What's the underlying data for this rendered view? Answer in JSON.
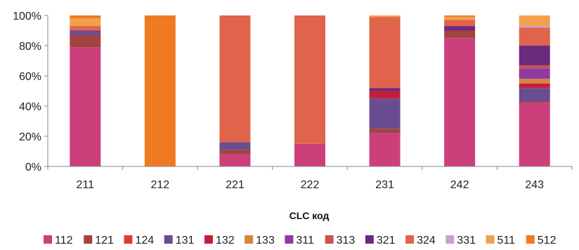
{
  "chart_data": {
    "type": "bar",
    "stacked": true,
    "percent": true,
    "title": "",
    "xlabel": "CLC код",
    "ylabel": "",
    "ylim": [
      0,
      100
    ],
    "yticks": [
      "0%",
      "20%",
      "40%",
      "60%",
      "80%",
      "100%"
    ],
    "grid": false,
    "legend_position": "bottom",
    "categories": [
      "211",
      "212",
      "221",
      "222",
      "231",
      "242",
      "243"
    ],
    "series": [
      {
        "name": "112",
        "color": "#cc3f7b",
        "values": [
          79,
          0,
          8,
          15,
          22,
          85,
          42
        ]
      },
      {
        "name": "121",
        "color": "#a3433f",
        "values": [
          8,
          0,
          3,
          0,
          3,
          5,
          1
        ]
      },
      {
        "name": "124",
        "color": "#e03a36",
        "values": [
          0,
          0,
          0,
          0,
          0,
          0,
          0
        ]
      },
      {
        "name": "131",
        "color": "#6a4c92",
        "values": [
          3,
          0,
          5,
          0,
          20,
          0,
          9
        ]
      },
      {
        "name": "132",
        "color": "#c41e3a",
        "values": [
          0,
          0,
          0,
          0,
          5,
          0,
          3
        ]
      },
      {
        "name": "133",
        "color": "#d6843e",
        "values": [
          0,
          0,
          0,
          0,
          0,
          0,
          3
        ]
      },
      {
        "name": "311",
        "color": "#8e3aa0",
        "values": [
          0,
          0,
          0,
          0,
          0,
          0,
          7
        ]
      },
      {
        "name": "313",
        "color": "#c9524f",
        "values": [
          0,
          0,
          0,
          0,
          0,
          0,
          2
        ]
      },
      {
        "name": "321",
        "color": "#6b2a7d",
        "values": [
          0,
          0,
          0,
          0,
          2,
          3,
          13
        ]
      },
      {
        "name": "324",
        "color": "#e0634b",
        "values": [
          3,
          0,
          84,
          85,
          47,
          4,
          12
        ]
      },
      {
        "name": "331",
        "color": "#c7a2cf",
        "values": [
          0,
          0,
          0,
          0,
          0,
          0,
          1
        ]
      },
      {
        "name": "511",
        "color": "#f2a04e",
        "values": [
          5,
          0,
          0,
          0,
          1,
          2,
          7
        ]
      },
      {
        "name": "512",
        "color": "#ef7a22",
        "values": [
          2,
          100,
          0,
          0,
          0,
          1,
          0
        ]
      }
    ]
  }
}
